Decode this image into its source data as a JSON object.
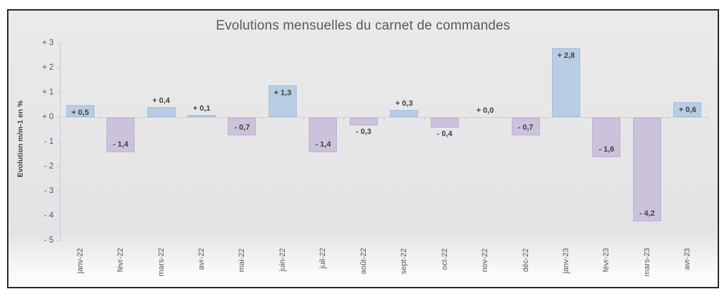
{
  "chart_data": {
    "type": "bar",
    "title": "Evolutions mensuelles du carnet de commandes",
    "ylabel": "Evolution m/m-1 en %",
    "xlabel": "",
    "categories": [
      "janv-22",
      "févr-22",
      "mars-22",
      "avr-22",
      "mai-22",
      "juin-22",
      "juil-22",
      "août-22",
      "sept-22",
      "oct-22",
      "nov-22",
      "déc-22",
      "janv-23",
      "févr-23",
      "mars-23",
      "avr-23"
    ],
    "values": [
      0.5,
      -1.4,
      0.4,
      0.1,
      -0.7,
      1.3,
      -1.4,
      -0.3,
      0.3,
      -0.4,
      0.0,
      -0.7,
      2.8,
      -1.6,
      -4.2,
      0.6
    ],
    "bar_labels": [
      "+ 0,5",
      "- 1,4",
      "+ 0,4",
      "+ 0,1",
      "- 0,7",
      "+ 1,3",
      "- 1,4",
      "- 0,3",
      "+ 0,3",
      "- 0,4",
      "+ 0,0",
      "- 0,7",
      "+ 2,8",
      "- 1,6",
      "- 4,2",
      "+ 0,6"
    ],
    "y_ticks": [
      {
        "label": "+ 3",
        "value": 3
      },
      {
        "label": "+ 2",
        "value": 2
      },
      {
        "label": "+ 1",
        "value": 1
      },
      {
        "label": "+ 0",
        "value": 0
      },
      {
        "label": "- 1",
        "value": -1
      },
      {
        "label": "- 2",
        "value": -2
      },
      {
        "label": "- 3",
        "value": -3
      },
      {
        "label": "- 4",
        "value": -4
      },
      {
        "label": "- 5",
        "value": -5
      }
    ],
    "ylim": [
      -5,
      3
    ],
    "grid": "zero-line-only",
    "legend": "none",
    "colors": {
      "positive_fill": "#b8cce4",
      "positive_border": "#a6bedb",
      "negative_fill": "#ccc2dc",
      "negative_border": "#bdb1d1",
      "value_label": "#404040",
      "axis_text": "#595959",
      "axis_line": "#bdcada",
      "grid_line": "#c9cfd6",
      "title_text": "#595959",
      "frame_border": "#262626"
    }
  }
}
